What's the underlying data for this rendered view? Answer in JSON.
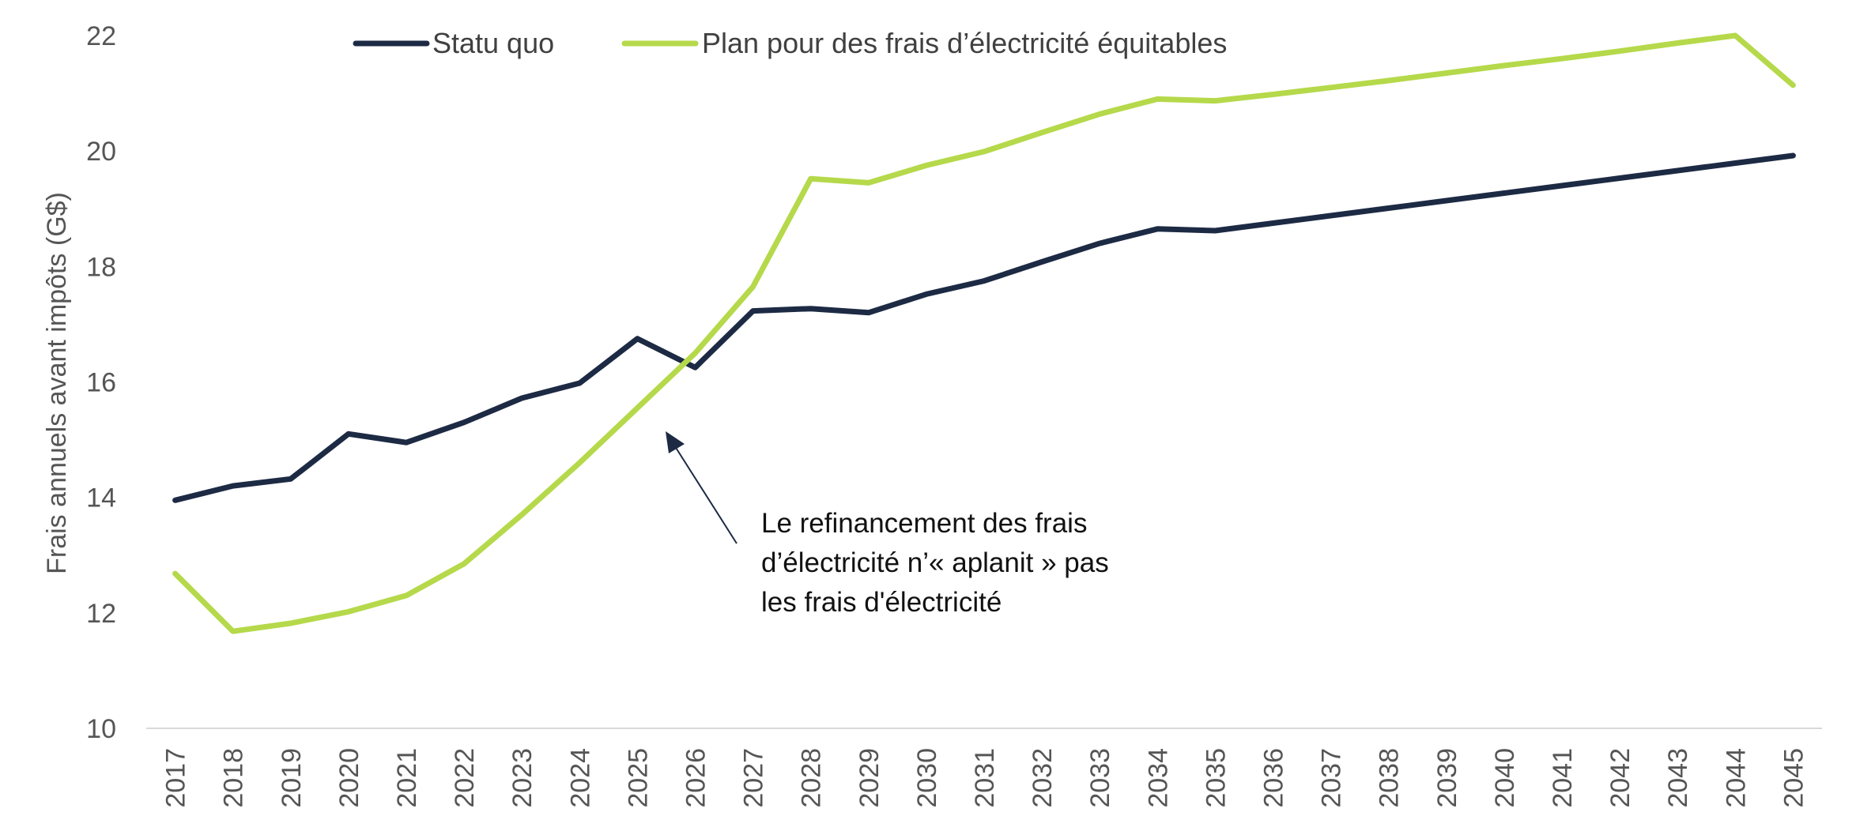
{
  "chart_data": {
    "type": "line",
    "title": "",
    "xlabel": "",
    "ylabel": "Frais annuels avant impôts (G$)",
    "ylim": [
      10,
      22
    ],
    "yticks": [
      10,
      12,
      14,
      16,
      18,
      20,
      22
    ],
    "x": [
      "2017",
      "2018",
      "2019",
      "2020",
      "2021",
      "2022",
      "2023",
      "2024",
      "2025",
      "2026",
      "2027",
      "2028",
      "2029",
      "2030",
      "2031",
      "2032",
      "2033",
      "2034",
      "2035",
      "2036",
      "2037",
      "2038",
      "2039",
      "2040",
      "2041",
      "2042",
      "2043",
      "2044",
      "2045"
    ],
    "series": [
      {
        "name": "Statu quo",
        "color": "#1d2a44",
        "values": [
          13.95,
          14.2,
          14.32,
          15.1,
          14.95,
          15.3,
          15.72,
          15.98,
          16.75,
          16.25,
          17.23,
          17.27,
          17.2,
          17.52,
          17.75,
          18.08,
          18.4,
          18.65,
          18.62,
          18.75,
          18.88,
          19.01,
          19.14,
          19.27,
          19.4,
          19.53,
          19.66,
          19.79,
          19.92
        ]
      },
      {
        "name": "Plan pour des frais d’électricité équitables",
        "color": "#b5d94a",
        "values": [
          12.68,
          11.68,
          11.82,
          12.02,
          12.3,
          12.85,
          13.7,
          14.6,
          15.55,
          16.5,
          17.65,
          19.52,
          19.45,
          19.75,
          19.99,
          20.32,
          20.64,
          20.9,
          20.87,
          20.98,
          21.1,
          21.22,
          21.35,
          21.48,
          21.6,
          21.73,
          21.87,
          22.0,
          21.14
        ]
      }
    ],
    "legend_position": "top",
    "annotation": {
      "lines": [
        "Le refinancement des frais",
        "d’électricité n’« aplanit » pas",
        "les frais d'électricité"
      ],
      "points_to": {
        "x": "2025",
        "y": 15.5
      }
    }
  }
}
